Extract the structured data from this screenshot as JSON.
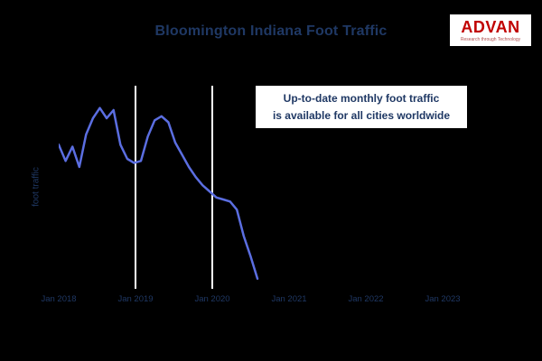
{
  "page": {
    "background_color": "#000000"
  },
  "title": "Bloomington Indiana Foot Traffic",
  "logo": {
    "brand": "ADVAN",
    "tagline": "Research through Technology"
  },
  "colors": {
    "title_text": "#1f3864",
    "line": "#5b6ee1",
    "gridline": "#ffffff",
    "annotation_bg": "#ffffff",
    "brand_red": "#c00000"
  },
  "annotation": {
    "line1": "Up-to-date monthly foot traffic",
    "line2": "is available for all cities worldwide"
  },
  "chart_data": {
    "type": "line",
    "title": "Bloomington Indiana Foot Traffic",
    "xlabel": "",
    "ylabel": "foot traffic",
    "x_tick_labels": [
      "Jan 2018",
      "Jan 2019",
      "Jan 2020",
      "Jan 2021",
      "Jan 2022",
      "Jan 2023"
    ],
    "y_tick_labels": [],
    "ylim": [
      0,
      100
    ],
    "grid": "two vertical white gridlines at Jan 2019 and Jan 2020",
    "legend_position": "none",
    "annotation_text": "Up-to-date monthly foot traffic is available for all cities worldwide",
    "series": [
      {
        "name": "Bloomington Indiana monthly foot traffic (relative index, no numeric y axis shown)",
        "x": [
          "Jan 2018",
          "Feb 2018",
          "Mar 2018",
          "Apr 2018",
          "May 2018",
          "Jun 2018",
          "Jul 2018",
          "Aug 2018",
          "Sep 2018",
          "Oct 2018",
          "Nov 2018",
          "Dec 2018",
          "Jan 2019",
          "Feb 2019",
          "Mar 2019",
          "Apr 2019",
          "May 2019",
          "Jun 2019",
          "Jul 2019",
          "Aug 2019",
          "Sep 2019",
          "Oct 2019",
          "Nov 2019",
          "Dec 2019",
          "Jan 2020",
          "Feb 2020",
          "Mar 2020",
          "Apr 2020",
          "May 2020",
          "Jun 2020"
        ],
        "values": [
          71,
          63,
          70,
          60,
          76,
          84,
          89,
          84,
          88,
          71,
          64,
          62,
          63,
          75,
          83,
          85,
          82,
          72,
          66,
          60,
          55,
          51,
          48,
          45,
          44,
          43,
          39,
          26,
          16,
          5
        ]
      }
    ]
  }
}
